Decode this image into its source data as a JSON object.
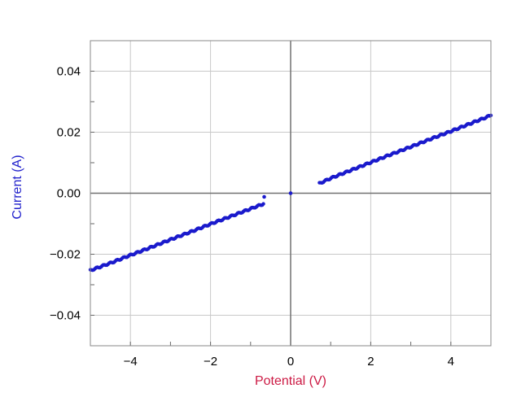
{
  "chart_data": {
    "type": "scatter",
    "title": "",
    "xlabel": "Potential (V)",
    "ylabel": "Current (A)",
    "xlim": [
      -5,
      5
    ],
    "ylim": [
      -0.05,
      0.05
    ],
    "x_ticks": [
      -4,
      -2,
      0,
      2,
      4
    ],
    "y_ticks": [
      -0.04,
      -0.02,
      0.0,
      0.02,
      0.04
    ],
    "x_tick_labels": [
      "−4",
      "−2",
      "0",
      "2",
      "4"
    ],
    "y_tick_labels": [
      "−0.04",
      "−0.02",
      "0.00",
      "0.02",
      "0.04"
    ],
    "grid": true,
    "colors": {
      "series": "#1a1acc",
      "xlabel": "#cc1a44",
      "ylabel": "#2222cc",
      "grid": "#c8c8c8",
      "zero_line": "#707070"
    },
    "series": [
      {
        "segments": [
          {
            "x": [
              -5.0,
              -4.5,
              -4.0,
              -3.5,
              -3.0,
              -2.5,
              -2.0,
              -1.5,
              -1.0,
              -0.68
            ],
            "y": [
              -0.0253,
              -0.0229,
              -0.0203,
              -0.0178,
              -0.0152,
              -0.0127,
              -0.0101,
              -0.0076,
              -0.0051,
              -0.0035
            ]
          },
          {
            "x": [
              -0.66
            ],
            "y": [
              -0.0012
            ]
          },
          {
            "x": [
              0.0
            ],
            "y": [
              0.0
            ]
          },
          {
            "x": [
              0.72,
              1.0,
              1.5,
              2.0,
              2.5,
              3.0,
              3.5,
              4.0,
              4.5,
              5.0
            ],
            "y": [
              0.0032,
              0.0049,
              0.0075,
              0.0101,
              0.0127,
              0.0152,
              0.0178,
              0.0203,
              0.0229,
              0.0255
            ]
          }
        ]
      }
    ]
  }
}
